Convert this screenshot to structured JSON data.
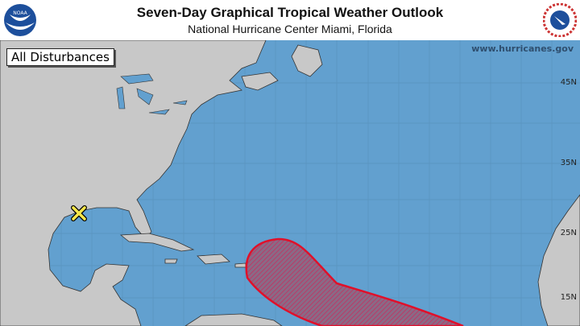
{
  "header": {
    "title": "Seven-Day Graphical Tropical Weather Outlook",
    "subtitle": "National Hurricane Center  Miami, Florida",
    "left_logo": "NOAA",
    "right_logo": "NATIONAL WEATHER SERVICE"
  },
  "map": {
    "panel_label": "All Disturbances",
    "website": "www.hurricanes.gov",
    "latitude_labels": [
      "45N",
      "35N",
      "25N",
      "15N"
    ],
    "colors": {
      "ocean": "#62a0cf",
      "land": "#c8c8c8",
      "outlook_area": "#e0102a",
      "marker": "#f6e84a"
    },
    "disturbances": [
      {
        "type": "area",
        "icon": "hatched-area",
        "color": "#e0102a"
      },
      {
        "type": "point",
        "icon": "x-marker",
        "color": "#f6e84a"
      }
    ]
  }
}
